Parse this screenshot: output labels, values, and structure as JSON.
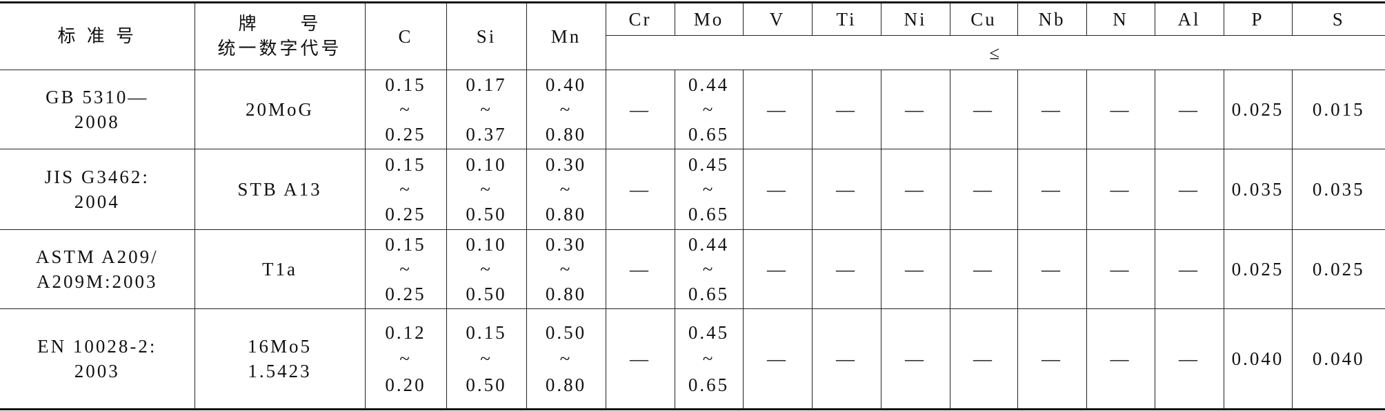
{
  "table": {
    "header": {
      "standard": "标 准 号",
      "grade": [
        "牌　　号",
        "统一数字代号"
      ],
      "elements": [
        "C",
        "Si",
        "Mn",
        "Cr",
        "Mo",
        "V",
        "Ti",
        "Ni",
        "Cu",
        "Nb",
        "N",
        "Al",
        "P",
        "S"
      ],
      "limit_note": "≤"
    },
    "rows": [
      {
        "standard": [
          "GB 5310—",
          "2008"
        ],
        "grade": [
          "20MoG"
        ],
        "cells": [
          [
            "0.15",
            "~",
            "0.25"
          ],
          [
            "0.17",
            "~",
            "0.37"
          ],
          [
            "0.40",
            "~",
            "0.80"
          ],
          [
            "—"
          ],
          [
            "0.44",
            "~",
            "0.65"
          ],
          [
            "—"
          ],
          [
            "—"
          ],
          [
            "—"
          ],
          [
            "—"
          ],
          [
            "—"
          ],
          [
            "—"
          ],
          [
            "—"
          ],
          [
            "0.025"
          ],
          [
            "0.015"
          ]
        ]
      },
      {
        "standard": [
          "JIS G3462:",
          "2004"
        ],
        "grade": [
          "STB A13"
        ],
        "cells": [
          [
            "0.15",
            "~",
            "0.25"
          ],
          [
            "0.10",
            "~",
            "0.50"
          ],
          [
            "0.30",
            "~",
            "0.80"
          ],
          [
            "—"
          ],
          [
            "0.45",
            "~",
            "0.65"
          ],
          [
            "—"
          ],
          [
            "—"
          ],
          [
            "—"
          ],
          [
            "—"
          ],
          [
            "—"
          ],
          [
            "—"
          ],
          [
            "—"
          ],
          [
            "0.035"
          ],
          [
            "0.035"
          ]
        ]
      },
      {
        "standard": [
          "ASTM A209/",
          "A209M:2003"
        ],
        "grade": [
          "T1a"
        ],
        "cells": [
          [
            "0.15",
            "~",
            "0.25"
          ],
          [
            "0.10",
            "~",
            "0.50"
          ],
          [
            "0.30",
            "~",
            "0.80"
          ],
          [
            "—"
          ],
          [
            "0.44",
            "~",
            "0.65"
          ],
          [
            "—"
          ],
          [
            "—"
          ],
          [
            "—"
          ],
          [
            "—"
          ],
          [
            "—"
          ],
          [
            "—"
          ],
          [
            "—"
          ],
          [
            "0.025"
          ],
          [
            "0.025"
          ]
        ]
      },
      {
        "standard": [
          "EN 10028-2:",
          "2003"
        ],
        "grade": [
          "16Mo5",
          "1.5423"
        ],
        "cells": [
          [
            "0.12",
            "~",
            "0.20"
          ],
          [
            "0.15",
            "~",
            "0.50"
          ],
          [
            "0.50",
            "~",
            "0.80"
          ],
          [
            "—"
          ],
          [
            "0.45",
            "~",
            "0.65"
          ],
          [
            "—"
          ],
          [
            "—"
          ],
          [
            "—"
          ],
          [
            "—"
          ],
          [
            "—"
          ],
          [
            "—"
          ],
          [
            "—"
          ],
          [
            "0.040"
          ],
          [
            "0.040"
          ]
        ]
      }
    ]
  }
}
